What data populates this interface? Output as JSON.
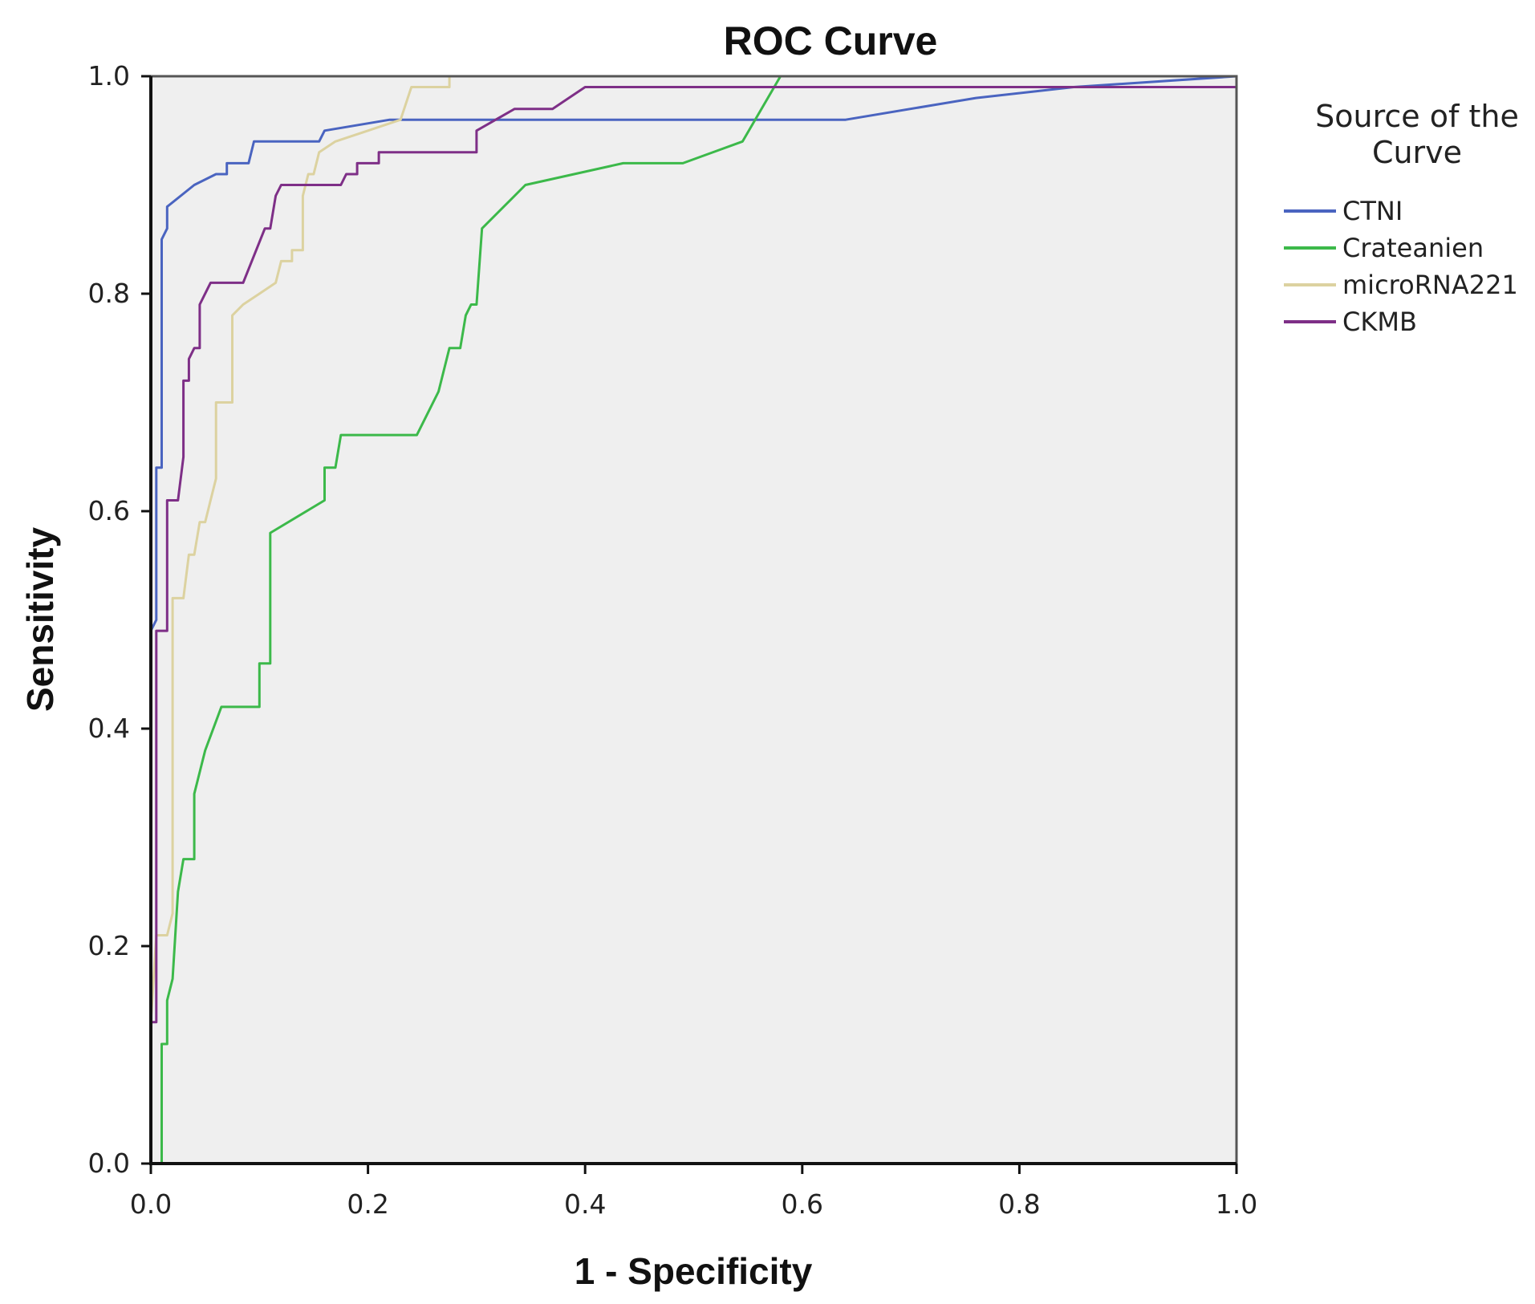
{
  "chart_data": {
    "type": "line",
    "title": "ROC Curve",
    "xlabel": "1 - Specificity",
    "ylabel": "Sensitivity",
    "xlim": [
      0,
      1
    ],
    "ylim": [
      0,
      1
    ],
    "xticks": [
      "0.0",
      "0.2",
      "0.4",
      "0.6",
      "0.8",
      "1.0"
    ],
    "yticks": [
      "0.0",
      "0.2",
      "0.4",
      "0.6",
      "0.8",
      "1.0"
    ],
    "grid": false,
    "plot_background": "#efefef",
    "legend": {
      "title_line1": "Source of the",
      "title_line2": "Curve",
      "placement": "right"
    },
    "series": [
      {
        "name": "CTNI",
        "color": "#4a64c0",
        "points": [
          [
            0,
            0
          ],
          [
            0,
            0.49
          ],
          [
            0.005,
            0.5
          ],
          [
            0.005,
            0.64
          ],
          [
            0.01,
            0.64
          ],
          [
            0.01,
            0.85
          ],
          [
            0.015,
            0.86
          ],
          [
            0.015,
            0.88
          ],
          [
            0.04,
            0.9
          ],
          [
            0.06,
            0.91
          ],
          [
            0.07,
            0.91
          ],
          [
            0.07,
            0.92
          ],
          [
            0.09,
            0.92
          ],
          [
            0.095,
            0.94
          ],
          [
            0.155,
            0.94
          ],
          [
            0.16,
            0.95
          ],
          [
            0.22,
            0.96
          ],
          [
            0.24,
            0.96
          ],
          [
            0.64,
            0.96
          ],
          [
            0.76,
            0.98
          ],
          [
            0.85,
            0.99
          ],
          [
            1,
            1
          ]
        ]
      },
      {
        "name": "Crateanien",
        "color": "#3cb94a",
        "points": [
          [
            0,
            0
          ],
          [
            0.01,
            0
          ],
          [
            0.01,
            0.11
          ],
          [
            0.015,
            0.11
          ],
          [
            0.015,
            0.15
          ],
          [
            0.02,
            0.17
          ],
          [
            0.025,
            0.25
          ],
          [
            0.03,
            0.28
          ],
          [
            0.04,
            0.28
          ],
          [
            0.04,
            0.34
          ],
          [
            0.05,
            0.38
          ],
          [
            0.065,
            0.42
          ],
          [
            0.1,
            0.42
          ],
          [
            0.1,
            0.46
          ],
          [
            0.11,
            0.46
          ],
          [
            0.11,
            0.58
          ],
          [
            0.16,
            0.61
          ],
          [
            0.16,
            0.64
          ],
          [
            0.17,
            0.64
          ],
          [
            0.175,
            0.67
          ],
          [
            0.245,
            0.67
          ],
          [
            0.265,
            0.71
          ],
          [
            0.275,
            0.75
          ],
          [
            0.285,
            0.75
          ],
          [
            0.29,
            0.78
          ],
          [
            0.295,
            0.79
          ],
          [
            0.3,
            0.79
          ],
          [
            0.305,
            0.86
          ],
          [
            0.345,
            0.9
          ],
          [
            0.435,
            0.92
          ],
          [
            0.49,
            0.92
          ],
          [
            0.545,
            0.94
          ],
          [
            0.58,
            1
          ],
          [
            1,
            1
          ]
        ]
      },
      {
        "name": "microRNA221",
        "color": "#dcd2a0",
        "points": [
          [
            0,
            0
          ],
          [
            0,
            0.13
          ],
          [
            0.005,
            0.21
          ],
          [
            0.015,
            0.21
          ],
          [
            0.02,
            0.23
          ],
          [
            0.02,
            0.52
          ],
          [
            0.03,
            0.52
          ],
          [
            0.035,
            0.56
          ],
          [
            0.04,
            0.56
          ],
          [
            0.045,
            0.59
          ],
          [
            0.05,
            0.59
          ],
          [
            0.055,
            0.61
          ],
          [
            0.06,
            0.63
          ],
          [
            0.06,
            0.7
          ],
          [
            0.075,
            0.7
          ],
          [
            0.075,
            0.78
          ],
          [
            0.085,
            0.79
          ],
          [
            0.1,
            0.8
          ],
          [
            0.115,
            0.81
          ],
          [
            0.12,
            0.83
          ],
          [
            0.13,
            0.83
          ],
          [
            0.13,
            0.84
          ],
          [
            0.14,
            0.84
          ],
          [
            0.14,
            0.89
          ],
          [
            0.145,
            0.91
          ],
          [
            0.15,
            0.91
          ],
          [
            0.155,
            0.93
          ],
          [
            0.17,
            0.94
          ],
          [
            0.2,
            0.95
          ],
          [
            0.23,
            0.96
          ],
          [
            0.24,
            0.99
          ],
          [
            0.275,
            0.99
          ],
          [
            0.275,
            1
          ],
          [
            1,
            1
          ]
        ]
      },
      {
        "name": "CKMB",
        "color": "#7e2f87",
        "points": [
          [
            0,
            0
          ],
          [
            0,
            0.13
          ],
          [
            0.005,
            0.13
          ],
          [
            0.005,
            0.49
          ],
          [
            0.015,
            0.49
          ],
          [
            0.015,
            0.61
          ],
          [
            0.025,
            0.61
          ],
          [
            0.03,
            0.65
          ],
          [
            0.03,
            0.72
          ],
          [
            0.035,
            0.72
          ],
          [
            0.035,
            0.74
          ],
          [
            0.04,
            0.75
          ],
          [
            0.045,
            0.75
          ],
          [
            0.045,
            0.79
          ],
          [
            0.055,
            0.81
          ],
          [
            0.085,
            0.81
          ],
          [
            0.105,
            0.86
          ],
          [
            0.11,
            0.86
          ],
          [
            0.115,
            0.89
          ],
          [
            0.12,
            0.9
          ],
          [
            0.175,
            0.9
          ],
          [
            0.18,
            0.91
          ],
          [
            0.19,
            0.91
          ],
          [
            0.19,
            0.92
          ],
          [
            0.21,
            0.92
          ],
          [
            0.21,
            0.93
          ],
          [
            0.3,
            0.93
          ],
          [
            0.3,
            0.95
          ],
          [
            0.335,
            0.97
          ],
          [
            0.37,
            0.97
          ],
          [
            0.4,
            0.99
          ],
          [
            0.8,
            0.99
          ],
          [
            1,
            0.99
          ]
        ]
      }
    ]
  }
}
